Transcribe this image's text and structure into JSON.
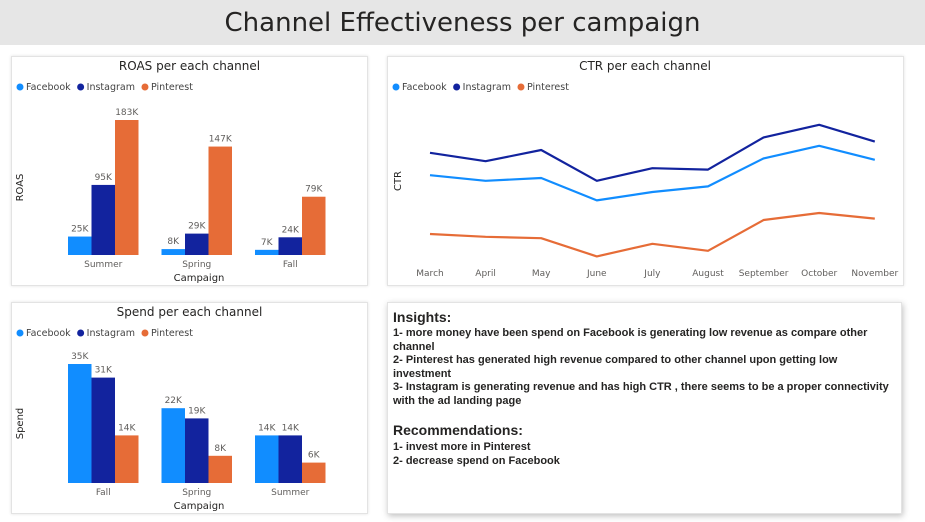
{
  "page_title": "Channel Effectiveness per campaign",
  "colors": {
    "Facebook": "#118dff",
    "Instagram": "#12239e",
    "Pinterest": "#e66c37"
  },
  "chart_data": [
    {
      "id": "roas",
      "type": "bar",
      "title": "ROAS per each channel",
      "xlabel": "Campaign",
      "ylabel": "ROAS",
      "categories": [
        "Summer",
        "Spring",
        "Fall"
      ],
      "series": [
        {
          "name": "Facebook",
          "values": [
            25000,
            8000,
            7000
          ],
          "labels": [
            "25K",
            "8K",
            "7K"
          ]
        },
        {
          "name": "Instagram",
          "values": [
            95000,
            29000,
            24000
          ],
          "labels": [
            "95K",
            "29K",
            "24K"
          ]
        },
        {
          "name": "Pinterest",
          "values": [
            183000,
            147000,
            79000
          ],
          "labels": [
            "183K",
            "147K",
            "79K"
          ]
        }
      ],
      "legend": "top-left"
    },
    {
      "id": "ctr",
      "type": "line",
      "title": "CTR per each channel",
      "ylabel": "CTR",
      "x": [
        "March",
        "April",
        "May",
        "June",
        "July",
        "August",
        "September",
        "October",
        "November"
      ],
      "series": [
        {
          "name": "Facebook",
          "values": [
            0.62,
            0.58,
            0.6,
            0.44,
            0.5,
            0.54,
            0.74,
            0.83,
            0.73
          ]
        },
        {
          "name": "Instagram",
          "values": [
            0.78,
            0.72,
            0.8,
            0.58,
            0.67,
            0.66,
            0.89,
            0.98,
            0.86
          ]
        },
        {
          "name": "Pinterest",
          "values": [
            0.2,
            0.18,
            0.17,
            0.04,
            0.13,
            0.08,
            0.3,
            0.35,
            0.31
          ]
        }
      ],
      "legend": "top-left"
    },
    {
      "id": "spend",
      "type": "bar",
      "title": "Spend per each channel",
      "xlabel": "Campaign",
      "ylabel": "Spend",
      "categories": [
        "Fall",
        "Spring",
        "Summer"
      ],
      "series": [
        {
          "name": "Facebook",
          "values": [
            35000,
            22000,
            14000
          ],
          "labels": [
            "35K",
            "22K",
            "14K"
          ]
        },
        {
          "name": "Instagram",
          "values": [
            31000,
            19000,
            14000
          ],
          "labels": [
            "31K",
            "19K",
            "14K"
          ]
        },
        {
          "name": "Pinterest",
          "values": [
            14000,
            8000,
            6000
          ],
          "labels": [
            "14K",
            "8K",
            "6K"
          ]
        }
      ],
      "legend": "top-left"
    }
  ],
  "insights": {
    "heading": "Insights:",
    "items": [
      "1- more money have been spend on Facebook is generating low revenue as compare other channel",
      "2- Pinterest has generated high revenue compared to other channel upon getting low investment",
      "3- Instagram is generating revenue and has high CTR , there seems to be a proper connectivity with the ad landing page"
    ]
  },
  "recommendations": {
    "heading": "Recommendations:",
    "items": [
      "1- invest more in Pinterest",
      "2- decrease spend on Facebook"
    ]
  }
}
